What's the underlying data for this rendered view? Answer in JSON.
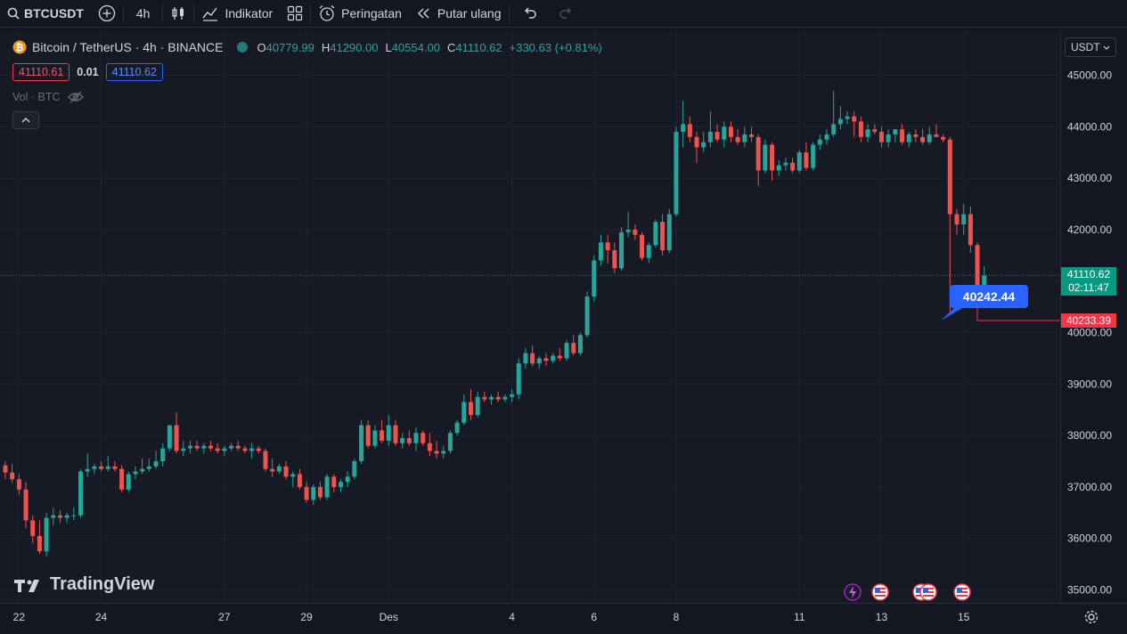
{
  "toolbar": {
    "symbol": "BTCUSDT",
    "interval": "4h",
    "indicators_label": "Indikator",
    "alerts_label": "Peringatan",
    "replay_label": "Putar ulang"
  },
  "legend": {
    "title": "Bitcoin / TetherUS · 4h · BINANCE",
    "open_key": "O",
    "open": "40779.99",
    "high_key": "H",
    "high": "41290.00",
    "low_key": "L",
    "low": "40554.00",
    "close_key": "C",
    "close": "41110.62",
    "change": "+330.63 (+0.81%)",
    "bid": "41110.61",
    "spread": "0.01",
    "ask": "41110.62",
    "volume_label": "Vol · BTC"
  },
  "currency": "USDT",
  "current_price": "41110.62",
  "countdown": "02:11:47",
  "alert_price": "40233.39",
  "callout_price": "40242.44",
  "watermark": "TradingView",
  "colors": {
    "up": "#26a69a",
    "down": "#ef5350",
    "accent": "#2962ff",
    "background": "#161a25"
  },
  "chart_data": {
    "type": "candlestick",
    "symbol": "Bitcoin / TetherUS",
    "interval": "4h",
    "exchange": "BINANCE",
    "y_ticks": [
      35000,
      36000,
      37000,
      38000,
      39000,
      40000,
      41000,
      42000,
      43000,
      44000,
      45000
    ],
    "y_tick_labels": [
      "35000.00",
      "36000.00",
      "37000.00",
      "38000.00",
      "39000.00",
      "40000.00",
      "41000.00",
      "42000.00",
      "43000.00",
      "44000.00",
      "45000.00"
    ],
    "x_ticks": [
      {
        "label": "22",
        "date": "2023-11-22"
      },
      {
        "label": "24",
        "date": "2023-11-24"
      },
      {
        "label": "27",
        "date": "2023-11-27"
      },
      {
        "label": "29",
        "date": "2023-11-29"
      },
      {
        "label": "Des",
        "date": "2023-12-01"
      },
      {
        "label": "4",
        "date": "2023-12-04"
      },
      {
        "label": "6",
        "date": "2023-12-06"
      },
      {
        "label": "8",
        "date": "2023-12-08"
      },
      {
        "label": "11",
        "date": "2023-12-11"
      },
      {
        "label": "13",
        "date": "2023-12-13"
      },
      {
        "label": "15",
        "date": "2023-12-15"
      }
    ],
    "candles": [
      {
        "o": 37420,
        "h": 37500,
        "l": 37150,
        "c": 37280
      },
      {
        "o": 37280,
        "h": 37450,
        "l": 37080,
        "c": 37150
      },
      {
        "o": 37150,
        "h": 37250,
        "l": 36850,
        "c": 36950
      },
      {
        "o": 36950,
        "h": 37100,
        "l": 36200,
        "c": 36350
      },
      {
        "o": 36350,
        "h": 36450,
        "l": 35900,
        "c": 36050
      },
      {
        "o": 36050,
        "h": 36350,
        "l": 35700,
        "c": 35750
      },
      {
        "o": 35750,
        "h": 36500,
        "l": 35650,
        "c": 36400
      },
      {
        "o": 36400,
        "h": 36600,
        "l": 36250,
        "c": 36450
      },
      {
        "o": 36450,
        "h": 36550,
        "l": 36300,
        "c": 36400
      },
      {
        "o": 36400,
        "h": 36500,
        "l": 36300,
        "c": 36450
      },
      {
        "o": 36450,
        "h": 36600,
        "l": 36350,
        "c": 36450
      },
      {
        "o": 36450,
        "h": 37350,
        "l": 36400,
        "c": 37300
      },
      {
        "o": 37300,
        "h": 37650,
        "l": 37200,
        "c": 37350
      },
      {
        "o": 37350,
        "h": 37450,
        "l": 37250,
        "c": 37400
      },
      {
        "o": 37400,
        "h": 37500,
        "l": 37300,
        "c": 37350
      },
      {
        "o": 37350,
        "h": 37600,
        "l": 37300,
        "c": 37400
      },
      {
        "o": 37400,
        "h": 37500,
        "l": 37300,
        "c": 37350
      },
      {
        "o": 37350,
        "h": 37420,
        "l": 36900,
        "c": 36950
      },
      {
        "o": 36950,
        "h": 37300,
        "l": 36900,
        "c": 37250
      },
      {
        "o": 37250,
        "h": 37400,
        "l": 37150,
        "c": 37300
      },
      {
        "o": 37300,
        "h": 37550,
        "l": 37250,
        "c": 37350
      },
      {
        "o": 37350,
        "h": 37550,
        "l": 37300,
        "c": 37400
      },
      {
        "o": 37400,
        "h": 37700,
        "l": 37350,
        "c": 37500
      },
      {
        "o": 37500,
        "h": 37850,
        "l": 37400,
        "c": 37750
      },
      {
        "o": 37750,
        "h": 38200,
        "l": 37700,
        "c": 38200
      },
      {
        "o": 38200,
        "h": 38450,
        "l": 37650,
        "c": 37700
      },
      {
        "o": 37700,
        "h": 37900,
        "l": 37600,
        "c": 37750
      },
      {
        "o": 37750,
        "h": 37900,
        "l": 37650,
        "c": 37800
      },
      {
        "o": 37800,
        "h": 37900,
        "l": 37700,
        "c": 37750
      },
      {
        "o": 37750,
        "h": 37850,
        "l": 37650,
        "c": 37800
      },
      {
        "o": 37800,
        "h": 37900,
        "l": 37700,
        "c": 37750
      },
      {
        "o": 37750,
        "h": 37850,
        "l": 37650,
        "c": 37700
      },
      {
        "o": 37700,
        "h": 37800,
        "l": 37600,
        "c": 37750
      },
      {
        "o": 37750,
        "h": 37850,
        "l": 37700,
        "c": 37800
      },
      {
        "o": 37800,
        "h": 37900,
        "l": 37700,
        "c": 37750
      },
      {
        "o": 37750,
        "h": 37800,
        "l": 37650,
        "c": 37700
      },
      {
        "o": 37700,
        "h": 37850,
        "l": 37550,
        "c": 37750
      },
      {
        "o": 37750,
        "h": 37800,
        "l": 37650,
        "c": 37700
      },
      {
        "o": 37700,
        "h": 37750,
        "l": 37300,
        "c": 37350
      },
      {
        "o": 37350,
        "h": 37550,
        "l": 37200,
        "c": 37300
      },
      {
        "o": 37300,
        "h": 37450,
        "l": 37250,
        "c": 37400
      },
      {
        "o": 37400,
        "h": 37500,
        "l": 37150,
        "c": 37200
      },
      {
        "o": 37200,
        "h": 37300,
        "l": 37000,
        "c": 37250
      },
      {
        "o": 37250,
        "h": 37350,
        "l": 36950,
        "c": 37000
      },
      {
        "o": 37000,
        "h": 37100,
        "l": 36700,
        "c": 36750
      },
      {
        "o": 36750,
        "h": 37050,
        "l": 36650,
        "c": 37000
      },
      {
        "o": 37000,
        "h": 37100,
        "l": 36750,
        "c": 36800
      },
      {
        "o": 36800,
        "h": 37250,
        "l": 36750,
        "c": 37200
      },
      {
        "o": 37200,
        "h": 37250,
        "l": 36900,
        "c": 37000
      },
      {
        "o": 37000,
        "h": 37150,
        "l": 36900,
        "c": 37100
      },
      {
        "o": 37100,
        "h": 37300,
        "l": 37000,
        "c": 37200
      },
      {
        "o": 37200,
        "h": 37550,
        "l": 37150,
        "c": 37500
      },
      {
        "o": 37500,
        "h": 38300,
        "l": 37450,
        "c": 38200
      },
      {
        "o": 38200,
        "h": 38300,
        "l": 37750,
        "c": 37800
      },
      {
        "o": 37800,
        "h": 38200,
        "l": 37750,
        "c": 38100
      },
      {
        "o": 38100,
        "h": 38300,
        "l": 37850,
        "c": 37900
      },
      {
        "o": 37900,
        "h": 38400,
        "l": 37800,
        "c": 38200
      },
      {
        "o": 38200,
        "h": 38300,
        "l": 37800,
        "c": 37850
      },
      {
        "o": 37850,
        "h": 38050,
        "l": 37750,
        "c": 37950
      },
      {
        "o": 37950,
        "h": 38100,
        "l": 37800,
        "c": 37850
      },
      {
        "o": 37850,
        "h": 38150,
        "l": 37700,
        "c": 38050
      },
      {
        "o": 38050,
        "h": 38100,
        "l": 37800,
        "c": 37850
      },
      {
        "o": 37850,
        "h": 38050,
        "l": 37600,
        "c": 37700
      },
      {
        "o": 37700,
        "h": 37900,
        "l": 37550,
        "c": 37650
      },
      {
        "o": 37650,
        "h": 37800,
        "l": 37550,
        "c": 37700
      },
      {
        "o": 37700,
        "h": 38100,
        "l": 37650,
        "c": 38050
      },
      {
        "o": 38050,
        "h": 38300,
        "l": 38000,
        "c": 38250
      },
      {
        "o": 38250,
        "h": 38800,
        "l": 38200,
        "c": 38650
      },
      {
        "o": 38650,
        "h": 38900,
        "l": 38300,
        "c": 38400
      },
      {
        "o": 38400,
        "h": 38850,
        "l": 38350,
        "c": 38750
      },
      {
        "o": 38750,
        "h": 38850,
        "l": 38650,
        "c": 38700
      },
      {
        "o": 38700,
        "h": 38800,
        "l": 38600,
        "c": 38750
      },
      {
        "o": 38750,
        "h": 38850,
        "l": 38650,
        "c": 38700
      },
      {
        "o": 38700,
        "h": 38800,
        "l": 38650,
        "c": 38750
      },
      {
        "o": 38750,
        "h": 38900,
        "l": 38650,
        "c": 38800
      },
      {
        "o": 38800,
        "h": 39500,
        "l": 38700,
        "c": 39400
      },
      {
        "o": 39400,
        "h": 39700,
        "l": 39300,
        "c": 39600
      },
      {
        "o": 39600,
        "h": 39750,
        "l": 39350,
        "c": 39400
      },
      {
        "o": 39400,
        "h": 39550,
        "l": 39300,
        "c": 39500
      },
      {
        "o": 39500,
        "h": 39600,
        "l": 39350,
        "c": 39450
      },
      {
        "o": 39450,
        "h": 39600,
        "l": 39400,
        "c": 39550
      },
      {
        "o": 39550,
        "h": 39700,
        "l": 39450,
        "c": 39500
      },
      {
        "o": 39500,
        "h": 39850,
        "l": 39450,
        "c": 39800
      },
      {
        "o": 39800,
        "h": 39950,
        "l": 39550,
        "c": 39600
      },
      {
        "o": 39600,
        "h": 40000,
        "l": 39550,
        "c": 39950
      },
      {
        "o": 39950,
        "h": 40800,
        "l": 39900,
        "c": 40700
      },
      {
        "o": 40700,
        "h": 41500,
        "l": 40600,
        "c": 41400
      },
      {
        "o": 41400,
        "h": 41900,
        "l": 41300,
        "c": 41750
      },
      {
        "o": 41750,
        "h": 41900,
        "l": 41350,
        "c": 41600
      },
      {
        "o": 41600,
        "h": 41750,
        "l": 41150,
        "c": 41250
      },
      {
        "o": 41250,
        "h": 42050,
        "l": 41200,
        "c": 41950
      },
      {
        "o": 41950,
        "h": 42350,
        "l": 41850,
        "c": 42000
      },
      {
        "o": 42000,
        "h": 42100,
        "l": 41800,
        "c": 41900
      },
      {
        "o": 41900,
        "h": 41950,
        "l": 41400,
        "c": 41450
      },
      {
        "o": 41450,
        "h": 41750,
        "l": 41350,
        "c": 41700
      },
      {
        "o": 41700,
        "h": 42200,
        "l": 41650,
        "c": 42150
      },
      {
        "o": 42150,
        "h": 42300,
        "l": 41500,
        "c": 41600
      },
      {
        "o": 41600,
        "h": 42400,
        "l": 41550,
        "c": 42300
      },
      {
        "o": 42300,
        "h": 44000,
        "l": 42250,
        "c": 43900
      },
      {
        "o": 43900,
        "h": 44500,
        "l": 43600,
        "c": 44050
      },
      {
        "o": 44050,
        "h": 44200,
        "l": 43700,
        "c": 43800
      },
      {
        "o": 43800,
        "h": 43900,
        "l": 43300,
        "c": 43600
      },
      {
        "o": 43600,
        "h": 43900,
        "l": 43500,
        "c": 43700
      },
      {
        "o": 43700,
        "h": 44300,
        "l": 43600,
        "c": 43900
      },
      {
        "o": 43900,
        "h": 44050,
        "l": 43700,
        "c": 43750
      },
      {
        "o": 43750,
        "h": 44100,
        "l": 43600,
        "c": 44000
      },
      {
        "o": 44000,
        "h": 44100,
        "l": 43700,
        "c": 43800
      },
      {
        "o": 43800,
        "h": 43950,
        "l": 43650,
        "c": 43700
      },
      {
        "o": 43700,
        "h": 44000,
        "l": 43600,
        "c": 43850
      },
      {
        "o": 43850,
        "h": 44000,
        "l": 43700,
        "c": 43800
      },
      {
        "o": 43800,
        "h": 43850,
        "l": 42850,
        "c": 43150
      },
      {
        "o": 43150,
        "h": 43750,
        "l": 43100,
        "c": 43650
      },
      {
        "o": 43650,
        "h": 43700,
        "l": 42950,
        "c": 43150
      },
      {
        "o": 43150,
        "h": 43350,
        "l": 43050,
        "c": 43250
      },
      {
        "o": 43250,
        "h": 43400,
        "l": 43150,
        "c": 43300
      },
      {
        "o": 43300,
        "h": 43400,
        "l": 43100,
        "c": 43150
      },
      {
        "o": 43150,
        "h": 43550,
        "l": 43100,
        "c": 43500
      },
      {
        "o": 43500,
        "h": 43700,
        "l": 43150,
        "c": 43200
      },
      {
        "o": 43200,
        "h": 43700,
        "l": 43150,
        "c": 43650
      },
      {
        "o": 43650,
        "h": 43850,
        "l": 43550,
        "c": 43750
      },
      {
        "o": 43750,
        "h": 43950,
        "l": 43650,
        "c": 43850
      },
      {
        "o": 43850,
        "h": 44700,
        "l": 43800,
        "c": 44050
      },
      {
        "o": 44050,
        "h": 44400,
        "l": 43950,
        "c": 44150
      },
      {
        "o": 44150,
        "h": 44300,
        "l": 44050,
        "c": 44200
      },
      {
        "o": 44200,
        "h": 44300,
        "l": 43800,
        "c": 44100
      },
      {
        "o": 44100,
        "h": 44200,
        "l": 43700,
        "c": 43800
      },
      {
        "o": 43800,
        "h": 44050,
        "l": 43700,
        "c": 43950
      },
      {
        "o": 43950,
        "h": 44050,
        "l": 43850,
        "c": 43900
      },
      {
        "o": 43900,
        "h": 44000,
        "l": 43600,
        "c": 43700
      },
      {
        "o": 43700,
        "h": 43950,
        "l": 43600,
        "c": 43850
      },
      {
        "o": 43850,
        "h": 43950,
        "l": 43700,
        "c": 43950
      },
      {
        "o": 43950,
        "h": 44050,
        "l": 43650,
        "c": 43700
      },
      {
        "o": 43700,
        "h": 43900,
        "l": 43600,
        "c": 43850
      },
      {
        "o": 43850,
        "h": 43950,
        "l": 43700,
        "c": 43800
      },
      {
        "o": 43800,
        "h": 43950,
        "l": 43650,
        "c": 43700
      },
      {
        "o": 43700,
        "h": 44000,
        "l": 43650,
        "c": 43850
      },
      {
        "o": 43850,
        "h": 44050,
        "l": 43800,
        "c": 43800
      },
      {
        "o": 43800,
        "h": 43850,
        "l": 43700,
        "c": 43750
      },
      {
        "o": 43750,
        "h": 43800,
        "l": 40400,
        "c": 42300
      },
      {
        "o": 42300,
        "h": 42400,
        "l": 41900,
        "c": 42100
      },
      {
        "o": 42100,
        "h": 42500,
        "l": 41900,
        "c": 42300
      },
      {
        "o": 42300,
        "h": 42450,
        "l": 41550,
        "c": 41700
      },
      {
        "o": 41700,
        "h": 41750,
        "l": 40240,
        "c": 40780
      },
      {
        "o": 40779.99,
        "h": 41290,
        "l": 40554,
        "c": 41110.62
      }
    ]
  }
}
